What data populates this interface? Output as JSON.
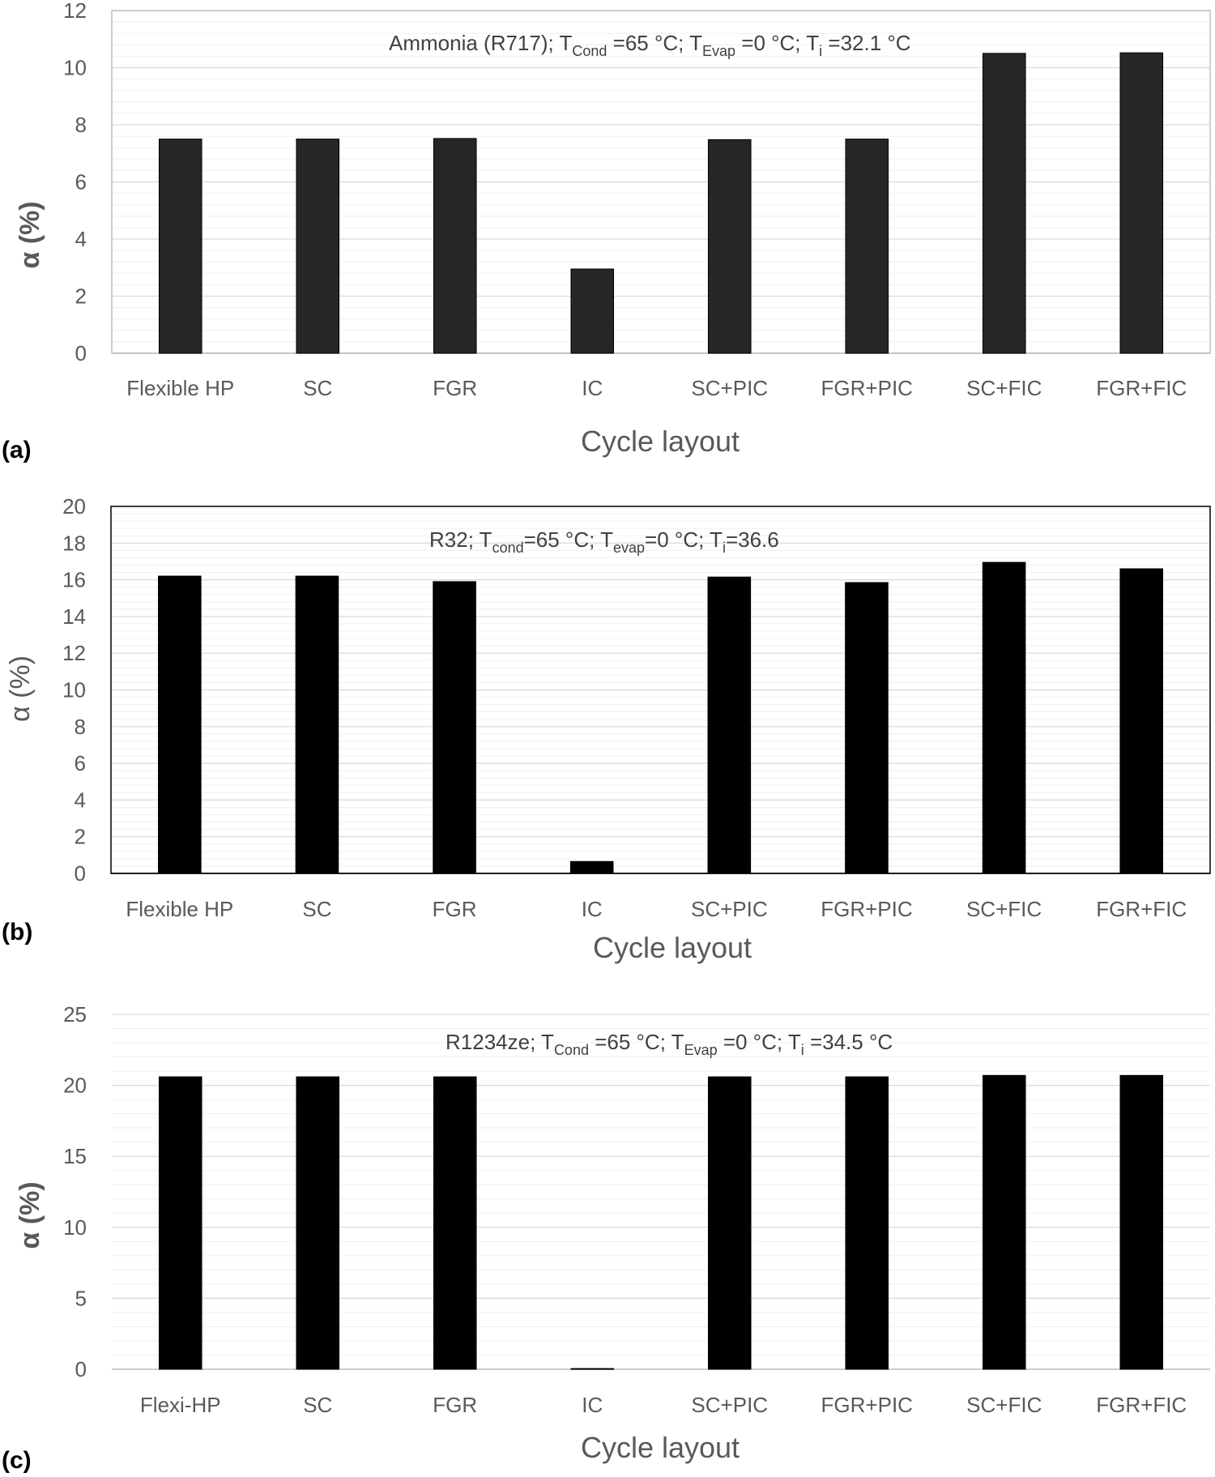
{
  "chart_data": [
    {
      "type": "bar",
      "panel_label": "(a)",
      "annotation": {
        "main": "Ammonia (R717); T",
        "parts": [
          {
            "t": "Ammonia (R717); T",
            "sub": false
          },
          {
            "t": "Cond",
            "sub": true
          },
          {
            "t": " =65 °C; T",
            "sub": false
          },
          {
            "t": "Evap",
            "sub": true
          },
          {
            "t": " =0 °C; T",
            "sub": false
          },
          {
            "t": "i",
            "sub": true
          },
          {
            "t": " =32.1 °C",
            "sub": false
          }
        ]
      },
      "categories": [
        "Flexible HP",
        "SC",
        "FGR",
        "IC",
        "SC+PIC",
        "FGR+PIC",
        "SC+FIC",
        "FGR+FIC"
      ],
      "values": [
        7.5,
        7.5,
        7.52,
        2.95,
        7.48,
        7.5,
        10.5,
        10.52
      ],
      "xlabel": "Cycle layout",
      "ylabel": "α (%)",
      "ylim": [
        0,
        12
      ],
      "yticks": [
        0,
        2,
        4,
        6,
        8,
        10,
        12
      ],
      "bar_color": "#262626"
    },
    {
      "type": "bar",
      "panel_label": "(b)",
      "annotation": {
        "main": "R32; T",
        "parts": [
          {
            "t": "R32; T",
            "sub": false
          },
          {
            "t": "cond",
            "sub": true
          },
          {
            "t": "=65 °C; T",
            "sub": false
          },
          {
            "t": "evap",
            "sub": true
          },
          {
            "t": "=0 °C; T",
            "sub": false
          },
          {
            "t": "i",
            "sub": true
          },
          {
            "t": "=36.6",
            "sub": false
          }
        ]
      },
      "categories": [
        "Flexible HP",
        "SC",
        "FGR",
        "IC",
        "SC+PIC",
        "FGR+PIC",
        "SC+FIC",
        "FGR+FIC"
      ],
      "values": [
        16.2,
        16.2,
        15.9,
        0.65,
        16.15,
        15.85,
        16.95,
        16.6
      ],
      "xlabel": "Cycle layout",
      "ylabel": "α (%)",
      "ylim": [
        0,
        20
      ],
      "yticks": [
        0,
        2,
        4,
        6,
        8,
        10,
        12,
        14,
        16,
        18,
        20
      ],
      "bar_color": "#000000"
    },
    {
      "type": "bar",
      "panel_label": "(c)",
      "annotation": {
        "main": "R1234ze; T",
        "parts": [
          {
            "t": "R1234ze; T",
            "sub": false
          },
          {
            "t": "Cond",
            "sub": true
          },
          {
            "t": " =65 °C; T",
            "sub": false
          },
          {
            "t": "Evap",
            "sub": true
          },
          {
            "t": " =0 °C; T",
            "sub": false
          },
          {
            "t": "i",
            "sub": true
          },
          {
            "t": " =34.5 °C",
            "sub": false
          }
        ]
      },
      "categories": [
        "Flexi-HP",
        "SC",
        "FGR",
        "IC",
        "SC+PIC",
        "FGR+PIC",
        "SC+FIC",
        "FGR+FIC"
      ],
      "values": [
        20.6,
        20.6,
        20.6,
        0.05,
        20.6,
        20.6,
        20.7,
        20.7
      ],
      "xlabel": "Cycle layout",
      "ylabel": "α (%)",
      "ylim": [
        0,
        25
      ],
      "yticks": [
        0,
        5,
        10,
        15,
        20,
        25
      ],
      "bar_color": "#000000"
    }
  ]
}
